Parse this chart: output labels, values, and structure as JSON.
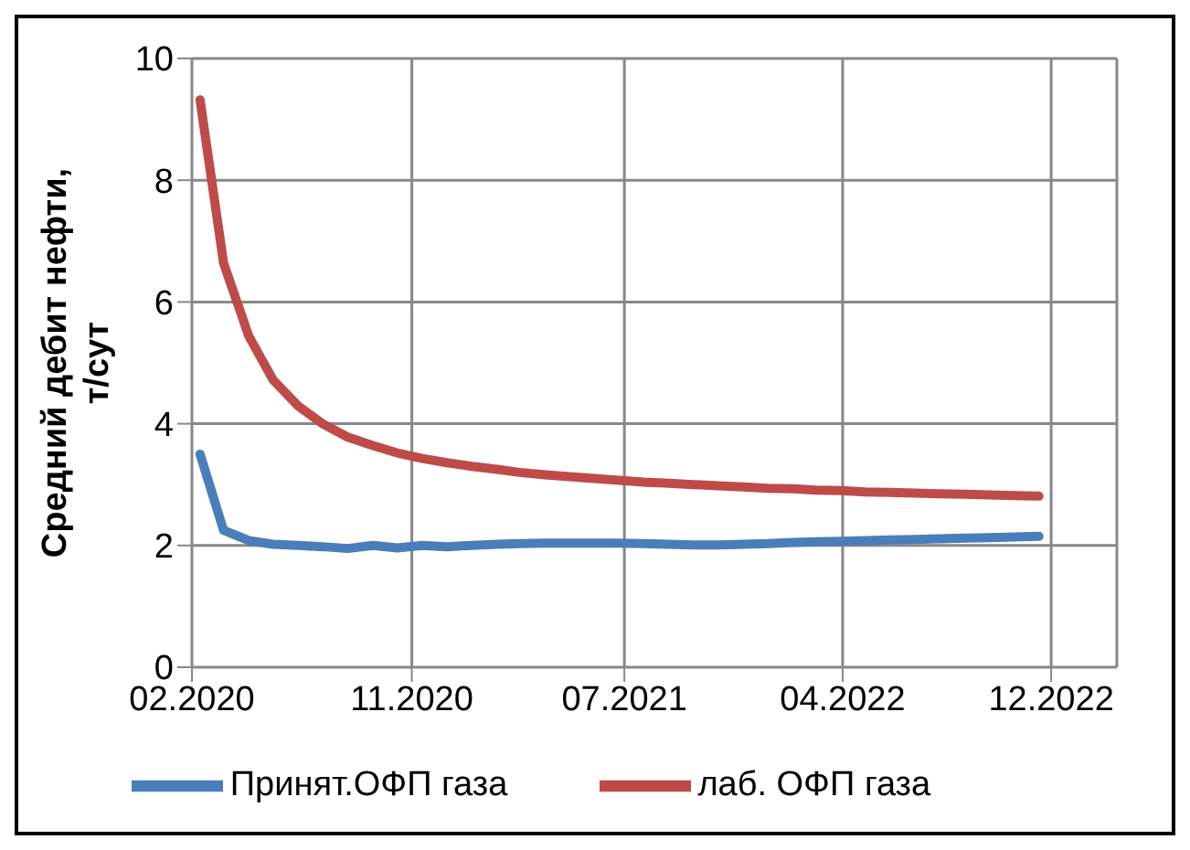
{
  "chart_data": {
    "type": "line",
    "ylabel": "Средний дебит нефти, т/сут",
    "x": [
      "2020-02-15",
      "2020-03-15",
      "2020-04-15",
      "2020-05-15",
      "2020-06-15",
      "2020-07-15",
      "2020-08-15",
      "2020-09-15",
      "2020-10-15",
      "2020-11-15",
      "2020-12-15",
      "2021-01-15",
      "2021-02-15",
      "2021-03-15",
      "2021-04-15",
      "2021-05-15",
      "2021-06-15",
      "2021-07-15",
      "2021-08-15",
      "2021-09-15",
      "2021-10-15",
      "2021-11-15",
      "2021-12-15",
      "2022-01-15",
      "2022-02-15",
      "2022-03-15",
      "2022-04-15",
      "2022-05-15",
      "2022-06-15",
      "2022-07-15",
      "2022-08-15",
      "2022-09-15",
      "2022-10-15",
      "2022-11-15",
      "2022-12-15"
    ],
    "series": [
      {
        "name": "Принят.ОФП газа",
        "color": "#4a7ebb",
        "values": [
          3.5,
          2.25,
          2.08,
          2.02,
          2.0,
          1.98,
          1.95,
          2.0,
          1.96,
          2.0,
          1.98,
          2.0,
          2.02,
          2.03,
          2.04,
          2.04,
          2.04,
          2.04,
          2.03,
          2.02,
          2.01,
          2.01,
          2.02,
          2.03,
          2.05,
          2.06,
          2.07,
          2.08,
          2.09,
          2.1,
          2.11,
          2.12,
          2.13,
          2.14,
          2.15
        ]
      },
      {
        "name": "лаб. ОФП газа",
        "color": "#be4b48",
        "values": [
          9.32,
          6.64,
          5.44,
          4.72,
          4.29,
          4.0,
          3.78,
          3.64,
          3.52,
          3.43,
          3.36,
          3.3,
          3.25,
          3.2,
          3.16,
          3.13,
          3.1,
          3.07,
          3.04,
          3.02,
          3.0,
          2.98,
          2.96,
          2.94,
          2.93,
          2.91,
          2.9,
          2.88,
          2.87,
          2.86,
          2.85,
          2.84,
          2.83,
          2.82,
          2.81
        ]
      }
    ],
    "xlim": [
      "2020-02-05",
      "2023-03-21"
    ],
    "xticks": [
      {
        "value": "2020-02-05",
        "label": "02.2020"
      },
      {
        "value": "2020-11-02",
        "label": "11.2020"
      },
      {
        "value": "2021-07-22",
        "label": "07.2021"
      },
      {
        "value": "2022-04-17",
        "label": "04.2022"
      },
      {
        "value": "2022-12-30",
        "label": "12.2022"
      }
    ],
    "ylim": [
      0,
      10
    ],
    "yticks": [
      0,
      2,
      4,
      6,
      8,
      10
    ],
    "grid": true,
    "legend": "bottom",
    "marker": "none",
    "line_style": "solid"
  }
}
